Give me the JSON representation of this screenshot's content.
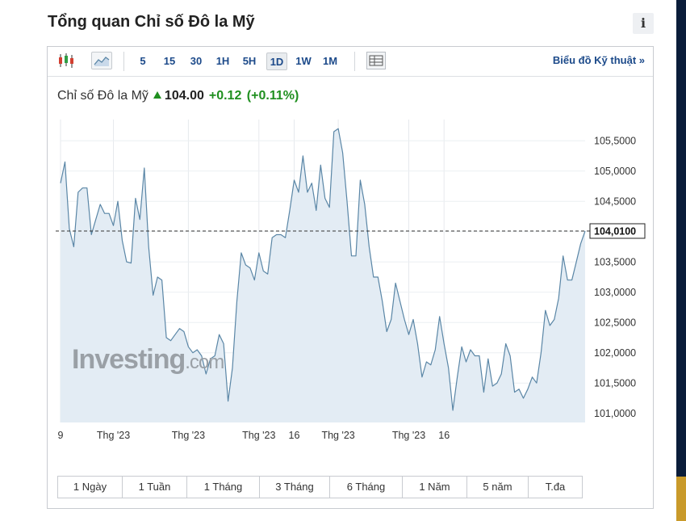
{
  "title": "Tổng quan Chỉ số Đô la Mỹ",
  "info_icon": "i",
  "toolbar": {
    "icons": [
      "candlestick-icon",
      "area-chart-icon",
      "table-view-icon"
    ],
    "intervals": [
      "5",
      "15",
      "30",
      "1H",
      "5H",
      "1D",
      "1W",
      "1M"
    ],
    "active_interval": "1D",
    "technical_link": "Biểu đồ Kỹ thuật »"
  },
  "quote": {
    "name": "Chỉ số Đô la Mỹ",
    "price": "104.00",
    "change": "+0.12",
    "change_pct": "(+0.11%)",
    "up_color": "#1f8f1f"
  },
  "watermark": {
    "text": "Investing",
    "suffix": ".com"
  },
  "chart_data": {
    "type": "area",
    "current_label": "104,0100",
    "current_value": 104.01,
    "y_ticks": [
      "105,5000",
      "105,0000",
      "104,5000",
      "104,0000",
      "103,5000",
      "103,0000",
      "102,5000",
      "102,0000",
      "101,5000",
      "101,0000"
    ],
    "ylim": [
      100.85,
      105.85
    ],
    "x_ticks": [
      "9",
      "Thg '23",
      "Thg '23",
      "Thg '23",
      "16",
      "Thg '23",
      "Thg '23",
      "16"
    ],
    "x_tick_index": [
      0,
      12,
      29,
      45,
      53,
      63,
      79,
      87
    ],
    "line_color": "#5a86a6",
    "fill_color": "#e3ecf4",
    "values": [
      104.8,
      105.15,
      104.05,
      103.75,
      104.65,
      104.72,
      104.72,
      103.95,
      104.2,
      104.45,
      104.3,
      104.3,
      104.1,
      104.5,
      103.85,
      103.5,
      103.48,
      104.55,
      104.2,
      105.05,
      103.75,
      102.95,
      103.25,
      103.2,
      102.25,
      102.2,
      102.3,
      102.4,
      102.35,
      102.1,
      102.0,
      102.05,
      101.95,
      101.65,
      101.9,
      101.95,
      102.3,
      102.15,
      101.2,
      101.75,
      102.85,
      103.65,
      103.45,
      103.4,
      103.2,
      103.65,
      103.35,
      103.3,
      103.9,
      103.95,
      103.95,
      103.9,
      104.35,
      104.85,
      104.65,
      105.25,
      104.65,
      104.8,
      104.35,
      105.1,
      104.55,
      104.4,
      105.65,
      105.7,
      105.3,
      104.5,
      103.6,
      103.6,
      104.85,
      104.45,
      103.75,
      103.25,
      103.25,
      102.85,
      102.35,
      102.55,
      103.15,
      102.85,
      102.55,
      102.3,
      102.55,
      102.15,
      101.6,
      101.85,
      101.8,
      102.05,
      102.6,
      102.15,
      101.75,
      101.05,
      101.6,
      102.1,
      101.85,
      102.05,
      101.95,
      101.95,
      101.35,
      101.9,
      101.45,
      101.5,
      101.65,
      102.15,
      101.95,
      101.35,
      101.4,
      101.25,
      101.4,
      101.6,
      101.5,
      102.0,
      102.7,
      102.45,
      102.55,
      102.9,
      103.6,
      103.2,
      103.2,
      103.5,
      103.8,
      104.01
    ]
  },
  "range_buttons": [
    "1 Ngày",
    "1 Tuần",
    "1 Tháng",
    "3 Tháng",
    "6 Tháng",
    "1 Năm",
    "5 năm",
    "T.đa"
  ]
}
